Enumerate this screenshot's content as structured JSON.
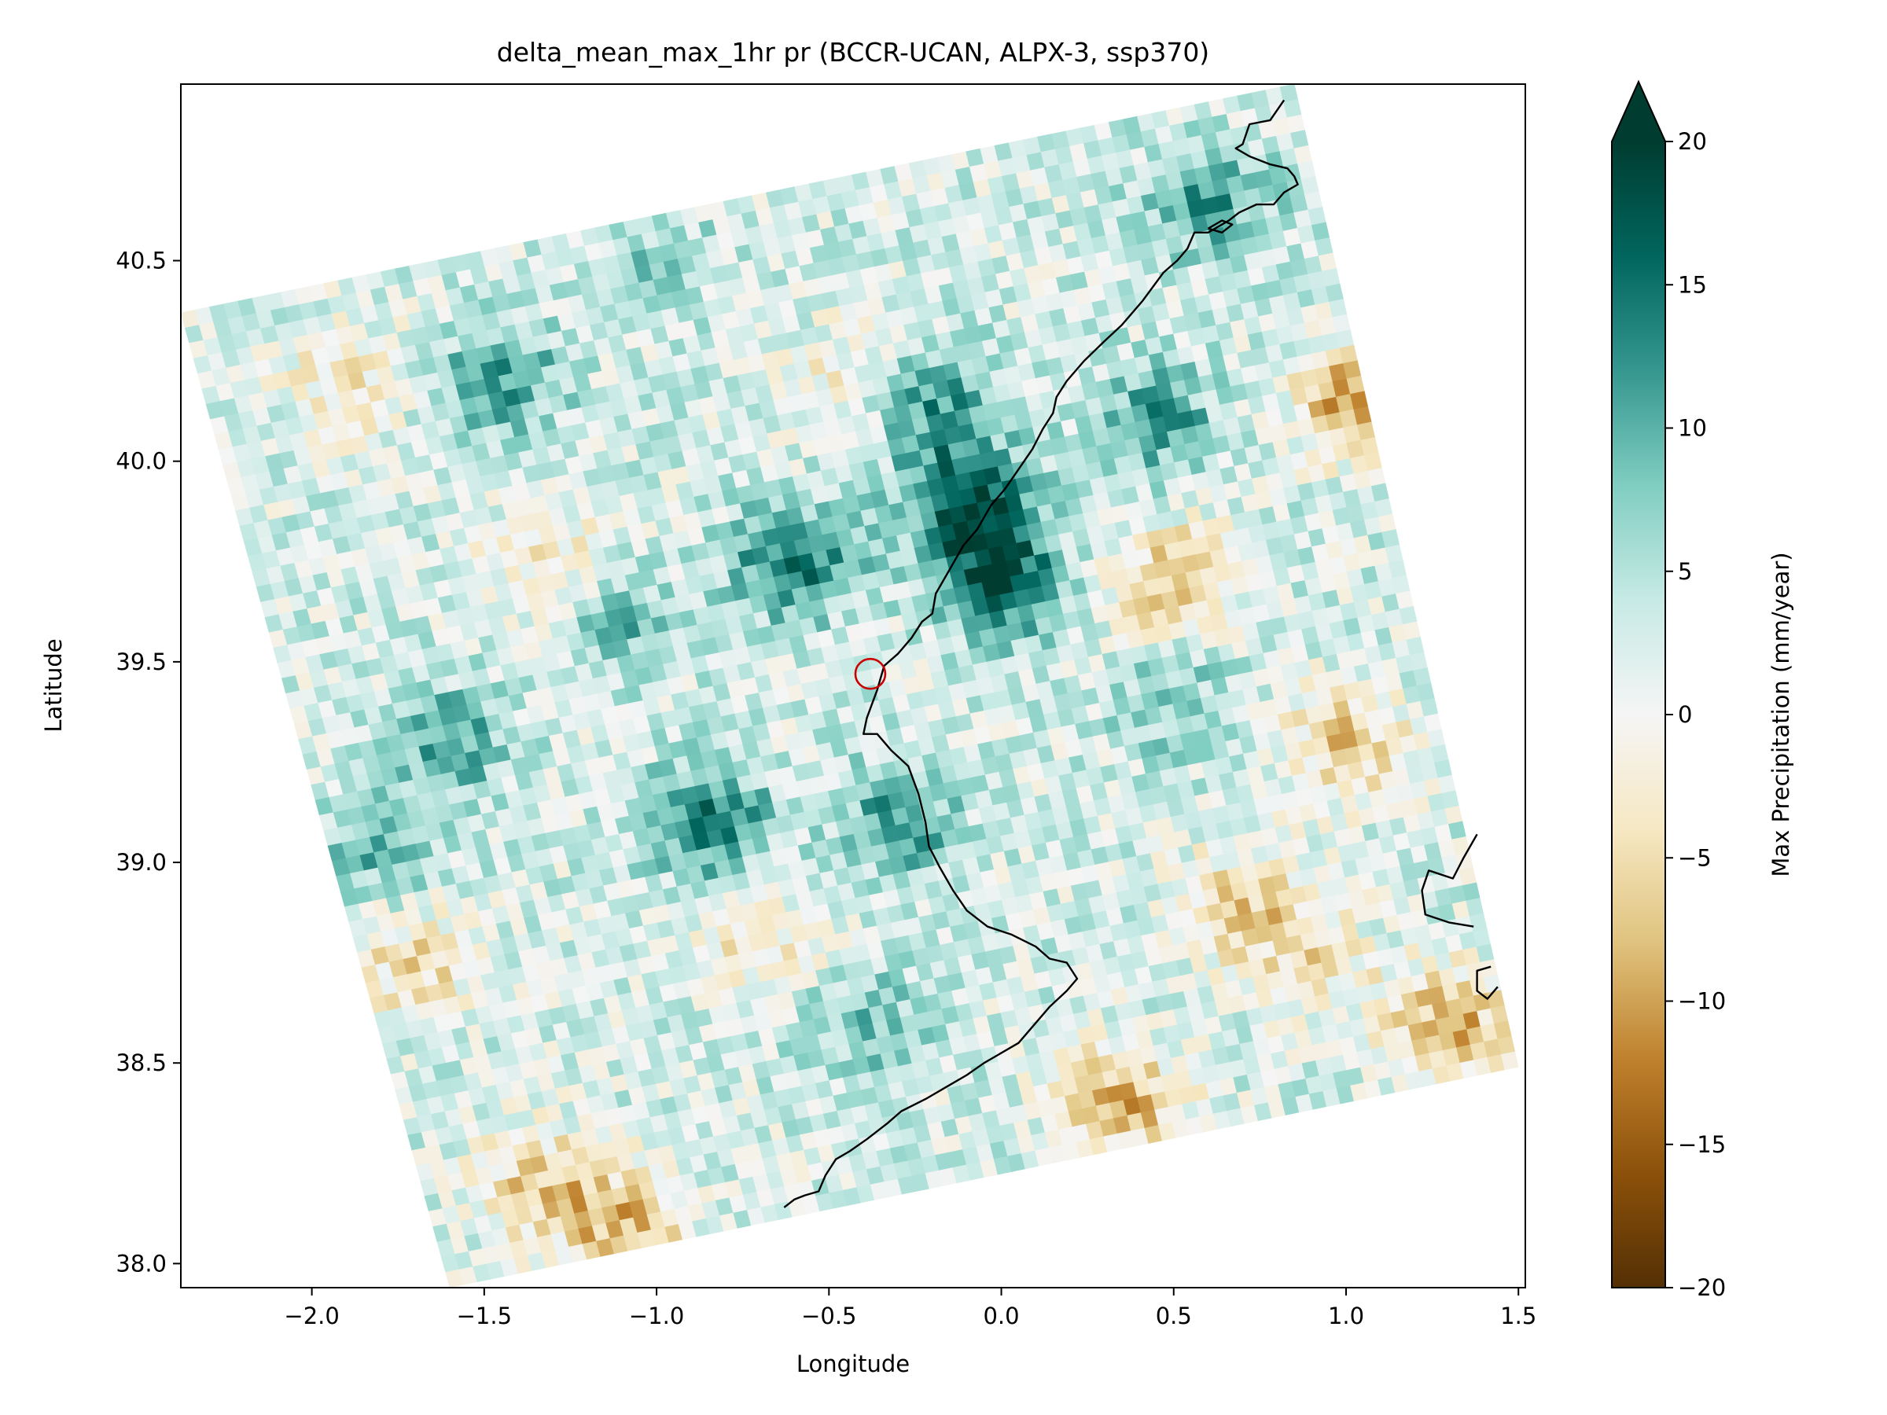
{
  "chart_data": {
    "type": "heatmap",
    "title": "delta_mean_max_1hr pr (BCCR-UCAN, ALPX-3, ssp370)",
    "xlabel": "Longitude",
    "ylabel": "Latitude",
    "xlim": [
      -2.38,
      1.52
    ],
    "ylim": [
      37.94,
      40.94
    ],
    "xticks": [
      -2.0,
      -1.5,
      -1.0,
      -0.5,
      0.0,
      0.5,
      1.0,
      1.5
    ],
    "xtick_labels": [
      "−2.0",
      "−1.5",
      "−1.0",
      "−0.5",
      "0.0",
      "0.5",
      "1.0",
      "1.5"
    ],
    "yticks": [
      38.0,
      38.5,
      39.0,
      39.5,
      40.0,
      40.5
    ],
    "ytick_labels": [
      "38.0",
      "38.5",
      "39.0",
      "39.5",
      "40.0",
      "40.5"
    ],
    "domain_corners": [
      [
        -2.38,
        40.37
      ],
      [
        0.85,
        40.94
      ],
      [
        1.5,
        38.49
      ],
      [
        -1.6,
        37.94
      ]
    ],
    "colorbar": {
      "label": "Max Precipitation (mm/year)",
      "range": [
        -20,
        20
      ],
      "extend": "max",
      "ticks": [
        -20,
        -15,
        -10,
        -5,
        0,
        5,
        10,
        15,
        20
      ],
      "tick_labels": [
        "−20",
        "−15",
        "−10",
        "−5",
        "0",
        "5",
        "10",
        "15",
        "20"
      ],
      "colormap": "BrBG",
      "colors": [
        "#543005",
        "#8c510a",
        "#bf812d",
        "#dfc27d",
        "#f6e8c3",
        "#f5f5f5",
        "#c7eae5",
        "#80cdc1",
        "#35978f",
        "#01665e",
        "#003c30"
      ]
    },
    "field_hotspots": [
      {
        "lon": -0.1,
        "lat": 39.9,
        "value": 18
      },
      {
        "lon": 0.0,
        "lat": 39.7,
        "value": 17
      },
      {
        "lon": -0.6,
        "lat": 39.75,
        "value": 15
      },
      {
        "lon": -0.85,
        "lat": 39.1,
        "value": 15
      },
      {
        "lon": -0.3,
        "lat": 39.1,
        "value": 12
      },
      {
        "lon": -0.2,
        "lat": 40.15,
        "value": 12
      },
      {
        "lon": 0.45,
        "lat": 40.1,
        "value": 12
      },
      {
        "lon": -1.45,
        "lat": 40.2,
        "value": 12
      },
      {
        "lon": -1.6,
        "lat": 39.3,
        "value": 11
      },
      {
        "lon": -1.8,
        "lat": 39.05,
        "value": 10
      },
      {
        "lon": 0.6,
        "lat": 40.65,
        "value": 12
      },
      {
        "lon": -0.4,
        "lat": 38.6,
        "value": 9
      },
      {
        "lon": 0.5,
        "lat": 39.4,
        "value": 8
      },
      {
        "lon": -1.1,
        "lat": 39.6,
        "value": 9
      },
      {
        "lon": -1.0,
        "lat": 40.5,
        "value": 7
      },
      {
        "lon": 1.05,
        "lat": 40.15,
        "value": -12
      },
      {
        "lon": 0.5,
        "lat": 39.7,
        "value": -8
      },
      {
        "lon": 0.35,
        "lat": 38.4,
        "value": -9
      },
      {
        "lon": 1.3,
        "lat": 38.6,
        "value": -9
      },
      {
        "lon": -1.1,
        "lat": 38.1,
        "value": -8
      },
      {
        "lon": 1.0,
        "lat": 39.3,
        "value": -7
      },
      {
        "lon": -1.35,
        "lat": 38.2,
        "value": -6
      },
      {
        "lon": 0.7,
        "lat": 38.9,
        "value": -6
      },
      {
        "lon": -1.7,
        "lat": 38.75,
        "value": -5
      },
      {
        "lon": -0.7,
        "lat": 38.8,
        "value": -4
      },
      {
        "lon": -1.3,
        "lat": 39.75,
        "value": -4
      },
      {
        "lon": -1.9,
        "lat": 40.2,
        "value": -4
      },
      {
        "lon": -0.45,
        "lat": 40.2,
        "value": -3
      },
      {
        "lon": 0.9,
        "lat": 38.75,
        "value": -4
      }
    ],
    "coastline": [
      [
        0.82,
        40.9
      ],
      [
        0.78,
        40.85
      ],
      [
        0.72,
        40.84
      ],
      [
        0.7,
        40.79
      ],
      [
        0.68,
        40.78
      ],
      [
        0.72,
        40.76
      ],
      [
        0.78,
        40.74
      ],
      [
        0.83,
        40.73
      ],
      [
        0.85,
        40.71
      ],
      [
        0.86,
        40.69
      ],
      [
        0.82,
        40.67
      ],
      [
        0.79,
        40.64
      ],
      [
        0.74,
        40.64
      ],
      [
        0.69,
        40.62
      ],
      [
        0.66,
        40.6
      ],
      [
        0.6,
        40.57
      ],
      [
        0.56,
        40.57
      ],
      [
        0.54,
        40.53
      ],
      [
        0.51,
        40.5
      ],
      [
        0.47,
        40.47
      ],
      [
        0.41,
        40.4
      ],
      [
        0.35,
        40.34
      ],
      [
        0.3,
        40.3
      ],
      [
        0.24,
        40.25
      ],
      [
        0.19,
        40.2
      ],
      [
        0.16,
        40.16
      ],
      [
        0.15,
        40.12
      ],
      [
        0.12,
        40.08
      ],
      [
        0.09,
        40.03
      ],
      [
        0.05,
        39.98
      ],
      [
        0.01,
        39.93
      ],
      [
        -0.03,
        39.89
      ],
      [
        -0.07,
        39.83
      ],
      [
        -0.11,
        39.79
      ],
      [
        -0.15,
        39.73
      ],
      [
        -0.19,
        39.67
      ],
      [
        -0.2,
        39.62
      ],
      [
        -0.23,
        39.6
      ],
      [
        -0.26,
        39.56
      ],
      [
        -0.3,
        39.52
      ],
      [
        -0.34,
        39.49
      ],
      [
        -0.36,
        39.43
      ],
      [
        -0.39,
        39.36
      ],
      [
        -0.4,
        39.32
      ],
      [
        -0.36,
        39.32
      ],
      [
        -0.32,
        39.28
      ],
      [
        -0.27,
        39.24
      ],
      [
        -0.24,
        39.17
      ],
      [
        -0.22,
        39.1
      ],
      [
        -0.21,
        39.04
      ],
      [
        -0.18,
        38.99
      ],
      [
        -0.14,
        38.93
      ],
      [
        -0.1,
        38.88
      ],
      [
        -0.04,
        38.84
      ],
      [
        0.03,
        38.82
      ],
      [
        0.1,
        38.79
      ],
      [
        0.14,
        38.76
      ],
      [
        0.19,
        38.75
      ],
      [
        0.22,
        38.71
      ],
      [
        0.19,
        38.68
      ],
      [
        0.14,
        38.64
      ],
      [
        0.1,
        38.6
      ],
      [
        0.05,
        38.55
      ],
      [
        -0.01,
        38.52
      ],
      [
        -0.05,
        38.5
      ],
      [
        -0.1,
        38.47
      ],
      [
        -0.16,
        38.44
      ],
      [
        -0.22,
        38.41
      ],
      [
        -0.29,
        38.38
      ],
      [
        -0.33,
        38.35
      ],
      [
        -0.39,
        38.31
      ],
      [
        -0.44,
        38.28
      ],
      [
        -0.48,
        38.26
      ],
      [
        -0.51,
        38.22
      ],
      [
        -0.53,
        38.18
      ],
      [
        -0.57,
        38.17
      ],
      [
        -0.6,
        38.16
      ],
      [
        -0.63,
        38.14
      ]
    ],
    "coastline_islands": [
      [
        [
          1.38,
          39.07
        ],
        [
          1.34,
          39.01
        ],
        [
          1.31,
          38.96
        ],
        [
          1.24,
          38.98
        ],
        [
          1.22,
          38.93
        ],
        [
          1.23,
          38.87
        ],
        [
          1.3,
          38.85
        ],
        [
          1.37,
          38.84
        ]
      ],
      [
        [
          1.42,
          38.74
        ],
        [
          1.38,
          38.73
        ],
        [
          1.38,
          38.68
        ],
        [
          1.41,
          38.66
        ],
        [
          1.44,
          38.69
        ]
      ],
      [
        [
          0.6,
          40.58
        ],
        [
          0.64,
          40.6
        ],
        [
          0.67,
          40.59
        ],
        [
          0.64,
          40.57
        ],
        [
          0.6,
          40.58
        ]
      ]
    ],
    "marker": {
      "lon": -0.38,
      "lat": 39.47,
      "shape": "circle",
      "color": "#cc0000"
    }
  }
}
